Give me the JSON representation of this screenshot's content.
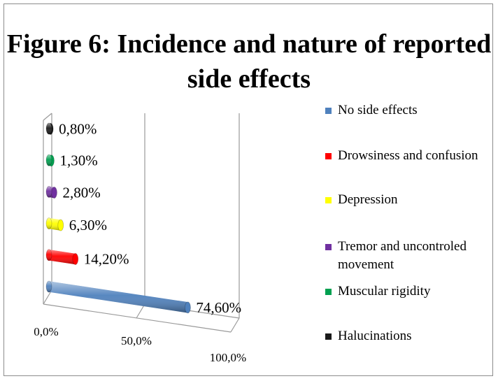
{
  "chart_data": {
    "type": "bar",
    "orientation": "horizontal",
    "three_d": true,
    "title": "Figure 6:  Incidence and nature of reported side effects",
    "categories": [
      "No side effects",
      "Drowsiness and confusion",
      "Depression",
      "Tremor and uncontroled movement",
      "Muscular rigidity",
      "Halucinations"
    ],
    "values": [
      74.6,
      14.2,
      6.3,
      2.8,
      1.3,
      0.8
    ],
    "value_labels": [
      "74,60%",
      "14,20%",
      "6,30%",
      "2,80%",
      "1,30%",
      "0,80%"
    ],
    "colors": [
      "#4f81bd",
      "#ff0000",
      "#ffff00",
      "#7030a0",
      "#00a050",
      "#1a1a1a"
    ],
    "xlim": [
      0,
      100
    ],
    "x_ticks": [
      0,
      50,
      100
    ],
    "x_tick_labels": [
      "0,0%",
      "50,0%",
      "100,0%"
    ],
    "xlabel": "",
    "ylabel": "",
    "grid": true,
    "legend_position": "right",
    "legend": [
      {
        "label": "No side effects",
        "color": "#4f81bd"
      },
      {
        "label": "Drowsiness and confusion",
        "color": "#ff0000"
      },
      {
        "label": "Depression",
        "color": "#ffff00"
      },
      {
        "label": "Tremor and uncontroled movement",
        "color": "#7030a0"
      },
      {
        "label": "Muscular rigidity",
        "color": "#00a050"
      },
      {
        "label": "Halucinations",
        "color": "#1a1a1a"
      }
    ]
  }
}
